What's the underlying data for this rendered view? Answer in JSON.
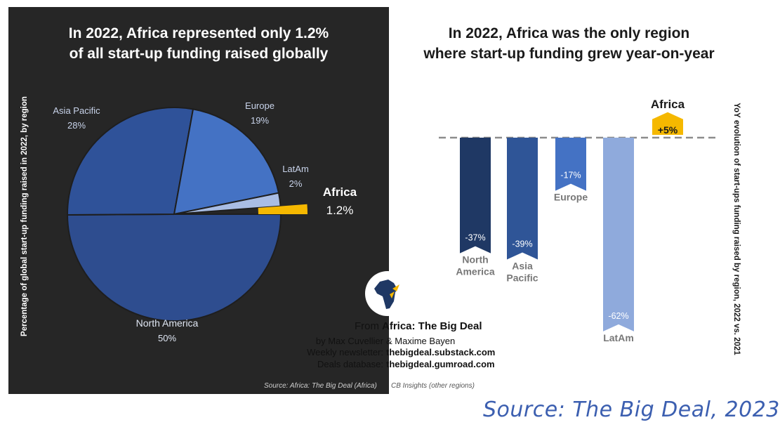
{
  "left_title": {
    "line1": "In 2022, Africa represented only 1.2%",
    "line2": "of all start-up funding raised globally"
  },
  "right_title": {
    "line1": "In 2022, Africa was the only region",
    "line2": "where start-up funding grew year-on-year"
  },
  "chart_data": [
    {
      "type": "pie",
      "title": "In 2022, Africa represented only 1.2% of all start-up funding raised globally",
      "ylabel": "Percentage of global start-up funding raised in 2022, by region",
      "slices": [
        {
          "label": "North America",
          "value": 50,
          "display": "50%",
          "color": "#2e4d8f"
        },
        {
          "label": "Asia Pacific",
          "value": 28,
          "display": "28%",
          "color": "#2f5299"
        },
        {
          "label": "Europe",
          "value": 19,
          "display": "19%",
          "color": "#4472c4"
        },
        {
          "label": "LatAm",
          "value": 2,
          "display": "2%",
          "color": "#a9bde4"
        },
        {
          "label": "Africa",
          "value": 1.2,
          "display": "1.2%",
          "color": "#f5b800"
        }
      ]
    },
    {
      "type": "bar",
      "title": "In 2022, Africa was the only region where start-up funding grew year-on-year",
      "ylabel": "YoY evolution of start-ups funding raised by region, 2022 vs. 2021",
      "ylim": [
        -65,
        5
      ],
      "bars": [
        {
          "label_lines": [
            "North",
            "America"
          ],
          "value": -37,
          "display": "-37%",
          "color": "#1f3864"
        },
        {
          "label_lines": [
            "Asia",
            "Pacific"
          ],
          "value": -39,
          "display": "-39%",
          "color": "#2f5597"
        },
        {
          "label_lines": [
            "Europe"
          ],
          "value": -17,
          "display": "-17%",
          "color": "#4472c4"
        },
        {
          "label_lines": [
            "LatAm"
          ],
          "value": -62,
          "display": "-62%",
          "color": "#8faadc"
        },
        {
          "label_lines": [
            "Africa"
          ],
          "value": 5,
          "display": "+5%",
          "color": "#f5b800"
        }
      ]
    }
  ],
  "credits": {
    "from_label": "From",
    "brand_africa": "Africa:",
    "brand_rest": " The Big Deal",
    "by_label": "by Max Cuvellier",
    "by_value": "& Maxime Bayen",
    "newsletter_label": "Weekly newsletter:",
    "newsletter_value": "thebigdeal.substack.com",
    "database_label": "Deals database:",
    "database_value": "thebigdeal.gumroad.com"
  },
  "source_note": {
    "part1": "Source: Africa: The Big Deal (Africa)",
    "part2": "CB Insights (other regions)"
  },
  "footer_source": "Source: The Big Deal, 2023",
  "colors": {
    "dark_bg": "#262626",
    "africa_gold": "#f5b800",
    "footer_blue": "#3c5fb0"
  }
}
